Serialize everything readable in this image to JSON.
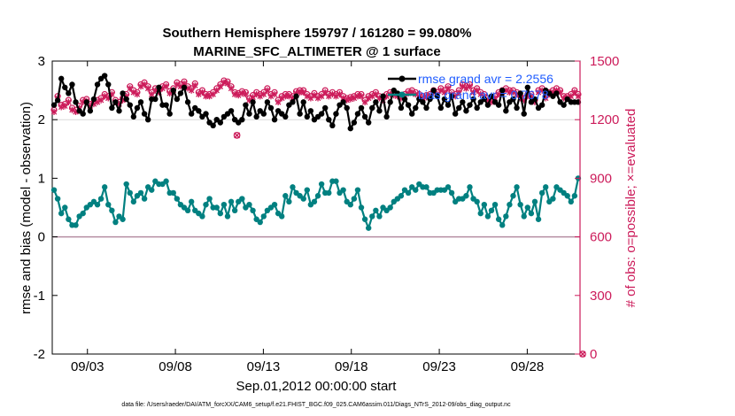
{
  "chart_data": {
    "type": "line",
    "title": "Southern Hemisphere 159797 / 161280 = 99.080%",
    "subtitle": "MARINE_SFC_ALTIMETER @ 1 surface",
    "xlabel": "Sep.01,2012 00:00:00 start",
    "ylabel_left": "rmse and bias (model - observation)",
    "ylabel_right": "# of obs: o=possible; ×=evaluated",
    "footnote": "data file: /Users/raeder/DAI/ATM_forcXX/CAM6_setup/f.e21.FHIST_BGC.f09_025.CAM6assim.011/Diags_NTrS_2012-09/obs_diag_output.nc",
    "x_range_days": [
      0,
      30
    ],
    "ylim_left": [
      -2,
      3
    ],
    "ylim_right": [
      0,
      1500
    ],
    "x_tick_days": [
      2,
      7,
      12,
      17,
      22,
      27
    ],
    "x_tick_labels": [
      "09/03",
      "09/08",
      "09/13",
      "09/18",
      "09/23",
      "09/28"
    ],
    "y_ticks_left": [
      -2,
      -1,
      0,
      1,
      2,
      3
    ],
    "y_tick_labels_left": [
      "-2",
      "-1",
      "0",
      "1",
      "2",
      "3"
    ],
    "y_ticks_right": [
      0,
      300,
      600,
      900,
      1200,
      1500
    ],
    "y_tick_labels_right": [
      "0",
      "300",
      "600",
      "900",
      "1200",
      "1500"
    ],
    "zero_line": 0,
    "grid": "horizontal at 2",
    "legend_position": "top-right",
    "series": [
      {
        "name": "rmse",
        "legend_label": "rmse grand avr = 2.2556",
        "color": "#000000",
        "axis": "left",
        "marker": "filled-circle",
        "values": [
          2.25,
          2.33,
          2.7,
          2.55,
          2.45,
          2.6,
          2.3,
          2.15,
          2.1,
          2.3,
          2.15,
          2.35,
          2.6,
          2.7,
          2.75,
          2.6,
          2.2,
          2.3,
          2.15,
          2.45,
          2.35,
          2.25,
          2.05,
          2.2,
          2.3,
          2.1,
          2.0,
          2.35,
          2.35,
          2.55,
          2.25,
          2.25,
          2.1,
          2.5,
          2.35,
          2.45,
          2.55,
          2.3,
          2.1,
          2.2,
          2.15,
          2.05,
          2.1,
          1.95,
          1.9,
          2.0,
          1.95,
          2.05,
          2.1,
          2.15,
          2.0,
          1.95,
          2.0,
          2.25,
          2.1,
          2.3,
          2.05,
          2.15,
          2.1,
          2.3,
          2.2,
          2.0,
          2.15,
          2.1,
          2.05,
          2.25,
          2.3,
          2.4,
          2.1,
          2.3,
          2.05,
          2.15,
          2.0,
          2.05,
          2.1,
          2.2,
          2.0,
          1.9,
          2.1,
          2.25,
          2.3,
          2.2,
          1.85,
          1.95,
          2.1,
          2.2,
          2.05,
          1.95,
          2.2,
          2.3,
          2.15,
          2.4,
          2.05,
          2.3,
          2.5,
          2.45,
          2.2,
          2.35,
          2.25,
          2.1,
          2.2,
          2.35,
          2.3,
          2.2,
          2.35,
          2.5,
          2.4,
          2.2,
          2.35,
          2.25,
          2.4,
          2.1,
          2.2,
          2.3,
          2.15,
          2.25,
          2.35,
          2.2,
          2.3,
          2.35,
          2.25,
          2.4,
          2.3,
          2.25,
          2.5,
          2.15,
          2.3,
          2.35,
          2.2,
          2.45,
          2.1,
          2.55,
          2.3,
          2.35,
          2.2,
          2.25,
          2.5,
          2.45,
          2.4,
          2.45,
          2.3,
          2.25,
          2.35,
          2.3,
          2.3,
          2.3
        ]
      },
      {
        "name": "bias",
        "legend_label": "bias grand avr = 0.7678",
        "color": "#008080",
        "axis": "left",
        "marker": "filled-circle",
        "values": [
          0.8,
          0.65,
          0.4,
          0.5,
          0.3,
          0.2,
          0.2,
          0.35,
          0.4,
          0.5,
          0.55,
          0.6,
          0.55,
          0.65,
          0.85,
          0.55,
          0.45,
          0.25,
          0.35,
          0.3,
          0.9,
          0.75,
          0.6,
          0.7,
          0.75,
          0.65,
          0.85,
          0.8,
          0.95,
          0.9,
          0.9,
          0.95,
          0.75,
          0.75,
          0.65,
          0.55,
          0.5,
          0.45,
          0.6,
          0.45,
          0.4,
          0.35,
          0.55,
          0.65,
          0.5,
          0.5,
          0.4,
          0.55,
          0.35,
          0.6,
          0.45,
          0.6,
          0.65,
          0.5,
          0.55,
          0.45,
          0.3,
          0.25,
          0.35,
          0.45,
          0.5,
          0.55,
          0.4,
          0.35,
          0.7,
          0.6,
          0.85,
          0.75,
          0.7,
          0.65,
          0.8,
          0.55,
          0.6,
          0.7,
          0.9,
          0.75,
          0.75,
          0.95,
          0.95,
          0.75,
          0.8,
          0.6,
          0.55,
          0.65,
          0.8,
          0.5,
          0.3,
          0.15,
          0.35,
          0.45,
          0.35,
          0.5,
          0.45,
          0.5,
          0.6,
          0.65,
          0.7,
          0.8,
          0.75,
          0.85,
          0.8,
          0.9,
          0.85,
          0.85,
          0.75,
          0.75,
          0.8,
          0.8,
          0.8,
          0.85,
          0.75,
          0.6,
          0.65,
          0.65,
          0.7,
          0.85,
          0.65,
          0.6,
          0.4,
          0.55,
          0.35,
          0.45,
          0.55,
          0.3,
          0.2,
          0.35,
          0.55,
          0.7,
          0.85,
          0.55,
          0.35,
          0.5,
          0.4,
          0.6,
          0.3,
          0.75,
          0.85,
          0.6,
          0.65,
          0.85,
          0.8,
          0.75,
          0.7,
          0.6,
          0.7,
          1.0
        ]
      },
      {
        "name": "obs possible",
        "color": "#cc1b5a",
        "axis": "right",
        "marker": "circle",
        "values": [
          1250,
          1320,
          1275,
          1280,
          1300,
          1260,
          1250,
          1270,
          1300,
          1305,
          1280,
          1290,
          1300,
          1310,
          1330,
          1320,
          1340,
          1300,
          1290,
          1310,
          1330,
          1370,
          1350,
          1340,
          1380,
          1390,
          1370,
          1340,
          1360,
          1350,
          1370,
          1380,
          1345,
          1360,
          1390,
          1380,
          1395,
          1370,
          1360,
          1385,
          1340,
          1350,
          1330,
          1330,
          1340,
          1360,
          1380,
          1400,
          1395,
          1370,
          1340,
          1335,
          1345,
          1340,
          1310,
          1325,
          1340,
          1330,
          1340,
          1360,
          1330,
          1340,
          1300,
          1320,
          1330,
          1330,
          1320,
          1345,
          1350,
          1350,
          1330,
          1320,
          1335,
          1320,
          1330,
          1350,
          1330,
          1340,
          1330,
          1340,
          1320,
          1310,
          1315,
          1320,
          1330,
          1330,
          1300,
          1320,
          1330,
          1340,
          1320,
          1310,
          1330,
          1340,
          1335,
          1330,
          1320,
          1330,
          1345,
          1350,
          1340,
          1330,
          1320,
          1325,
          1330,
          1350,
          1340,
          1360,
          1350,
          1370,
          1340,
          1330,
          1350,
          1380,
          1370,
          1380,
          1350,
          1360,
          1340,
          1330,
          1310,
          1300,
          1320,
          1340,
          1350,
          1360,
          1350,
          1350,
          1340,
          1320,
          1310,
          1330,
          1330,
          1300,
          1350,
          1360,
          1320,
          1340,
          1350,
          1360,
          1350,
          1320,
          1320,
          1330,
          1350,
          1330
        ]
      },
      {
        "name": "obs evaluated",
        "color": "#cc1b5a",
        "axis": "right",
        "marker": "x",
        "values": [
          1240,
          1310,
          1265,
          1270,
          1290,
          1250,
          1240,
          1260,
          1290,
          1295,
          1270,
          1280,
          1290,
          1300,
          1320,
          1310,
          1330,
          1290,
          1280,
          1300,
          1320,
          1360,
          1340,
          1330,
          1370,
          1380,
          1360,
          1330,
          1350,
          1340,
          1360,
          1370,
          1335,
          1350,
          1380,
          1370,
          1385,
          1360,
          1350,
          1375,
          1330,
          1340,
          1320,
          1320,
          1330,
          1350,
          1370,
          1390,
          1385,
          1360,
          1330,
          1325,
          1335,
          1330,
          1300,
          1315,
          1330,
          1320,
          1330,
          1350,
          1320,
          1330,
          1290,
          1310,
          1320,
          1320,
          1310,
          1335,
          1340,
          1340,
          1320,
          1310,
          1325,
          1310,
          1320,
          1340,
          1320,
          1330,
          1320,
          1330,
          1310,
          1300,
          1305,
          1310,
          1320,
          1320,
          1290,
          1310,
          1320,
          1330,
          1310,
          1300,
          1320,
          1330,
          1325,
          1320,
          1310,
          1320,
          1335,
          1340,
          1330,
          1320,
          1310,
          1315,
          1320,
          1340,
          1330,
          1350,
          1340,
          1360,
          1330,
          1320,
          1340,
          1370,
          1360,
          1370,
          1340,
          1350,
          1330,
          1320,
          1300,
          1290,
          1310,
          1330,
          1340,
          1350,
          1340,
          1340,
          1330,
          1310,
          1300,
          1320,
          1320,
          1290,
          1340,
          1350,
          1310,
          1330,
          1340,
          1350,
          1340,
          1310,
          1310,
          1320,
          1340,
          1320
        ]
      }
    ],
    "annotations": [
      {
        "name": "obs outlier",
        "day": 10.5,
        "value": 1120,
        "axis": "right",
        "marker": "circle+x"
      },
      {
        "name": "obs zero",
        "day": 30.15,
        "value": 0,
        "axis": "right",
        "marker": "circle+x"
      }
    ]
  }
}
